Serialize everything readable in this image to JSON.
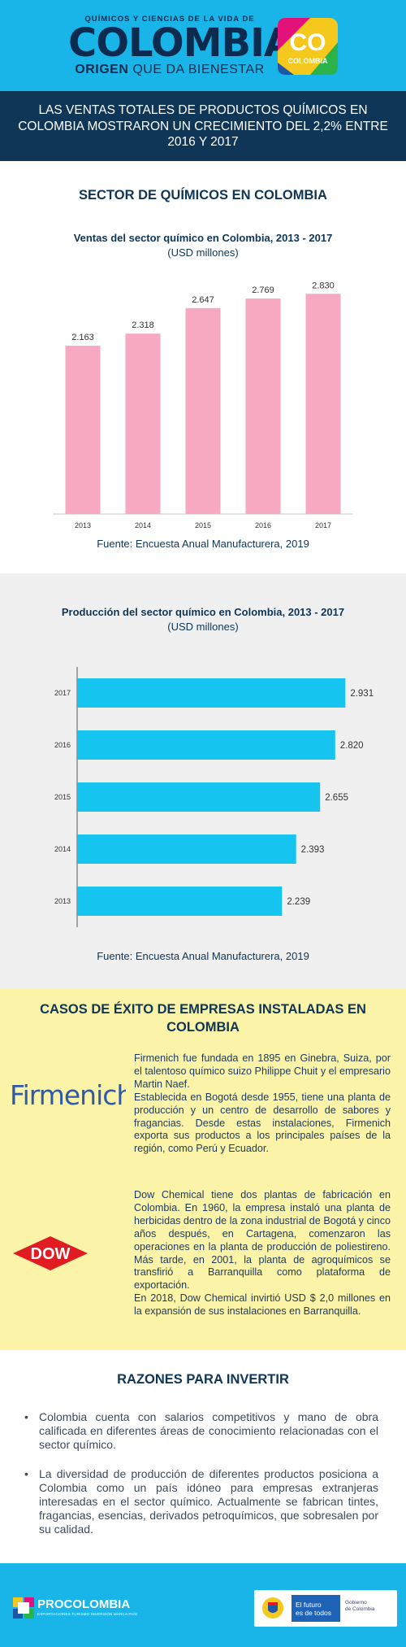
{
  "header": {
    "brand_top": "QUÍMICOS Y CIENCIAS DE LA VIDA DE",
    "brand_main": "COLOMBIA",
    "brand_origen": "ORIGEN",
    "brand_rest": "QUE DA BIENESTAR",
    "co_logo_letters": "CO",
    "co_logo_word": "COLOMBIA"
  },
  "headline": "LAS VENTAS TOTALES DE PRODUCTOS QUÍMICOS EN COLOMBIA MOSTRARON UN CRECIMIENTO DEL 2,2% ENTRE 2016 Y 2017",
  "section1": {
    "title": "SECTOR DE QUÍMICOS EN COLOMBIA",
    "source": "Fuente: Encuesta Anual Manufacturera, 2019"
  },
  "section2": {
    "source": "Fuente: Encuesta Anual Manufacturera, 2019"
  },
  "chart_data": [
    {
      "type": "bar",
      "orientation": "vertical",
      "title": "Ventas del sector químico en Colombia, 2013 - 2017",
      "subtitle": "(USD millones)",
      "categories": [
        "2013",
        "2014",
        "2015",
        "2016",
        "2017"
      ],
      "values": [
        2163,
        2318,
        2647,
        2769,
        2830
      ],
      "data_labels": [
        "2.163",
        "2.318",
        "2.647",
        "2.769",
        "2.830"
      ],
      "ylim": [
        0,
        3000
      ],
      "color": "#f7a9c2",
      "grid": false
    },
    {
      "type": "bar",
      "orientation": "horizontal",
      "title": "Producción del sector químico en Colombia, 2013 - 2017",
      "subtitle": "(USD millones)",
      "categories": [
        "2017",
        "2016",
        "2015",
        "2014",
        "2013"
      ],
      "values": [
        2931,
        2820,
        2655,
        2393,
        2239
      ],
      "data_labels": [
        "2.931",
        "2.820",
        "2.655",
        "2.393",
        "2.239"
      ],
      "xlim": [
        0,
        3150
      ],
      "color": "#16c4f0",
      "grid": false
    }
  ],
  "section3": {
    "title": "CASOS DE ÉXITO DE EMPRESAS INSTALADAS EN COLOMBIA",
    "firmenich_logo": "Firmenich",
    "dow_logo": "DOW",
    "firmenich_p1": "Firmenich fue fundada en 1895 en Ginebra, Suiza, por el talentoso químico suizo Philippe Chuit y el empresario Martin Naef.",
    "firmenich_p2": "Establecida en Bogotá desde 1955, tiene una planta de producción y un centro de desarrollo de sabores y fragancias. Desde estas instalaciones, Firmenich exporta sus productos a los principales países de la región, como Perú y Ecuador.",
    "dow_p1": "Dow Chemical tiene dos plantas de fabricación en Colombia. En 1960, la empresa instaló una planta de herbicidas dentro de la zona industrial de Bogotá y cinco años después, en Cartagena, comenzaron las operaciones en la planta de producción de poliestireno. Más tarde, en 2001, la planta de agroquímicos se transfirió a Barranquilla como plataforma de exportación.",
    "dow_p2": "En 2018, Dow Chemical invirtió USD $ 2,0 millones en la expansión de sus instalaciones en Barranquilla."
  },
  "section4": {
    "title": "RAZONES PARA INVERTIR",
    "bullet": "•",
    "items": [
      "Colombia cuenta con salarios competitivos y mano de obra calificada en diferentes áreas de conocimiento relacionadas con el sector químico.",
      "La diversidad de producción de diferentes productos posiciona a Colombia como un país idóneo para empresas extranjeras interesadas en el sector químico. Actualmente se fabrican tintes, fragancias, esencias, derivados petroquímicos, que sobresalen por su calidad."
    ]
  },
  "footer": {
    "procolombia": "PROCOLOMBIA",
    "procolombia_tag": "EXPORTACIONES TURISMO INVERSIÓN MARCA PAÍS",
    "slogan_line1": "El futuro",
    "slogan_line2": "es de todos",
    "gov_line1": "Gobierno",
    "gov_line2": "de Colombia"
  },
  "colors": {
    "header_blue": "#1ab5e8",
    "navy": "#0f3557",
    "sales_bar": "#f7a9c2",
    "production_bar": "#16c4f0",
    "cases_bg": "#fbf3a8",
    "production_bg": "#f0f0f0"
  }
}
